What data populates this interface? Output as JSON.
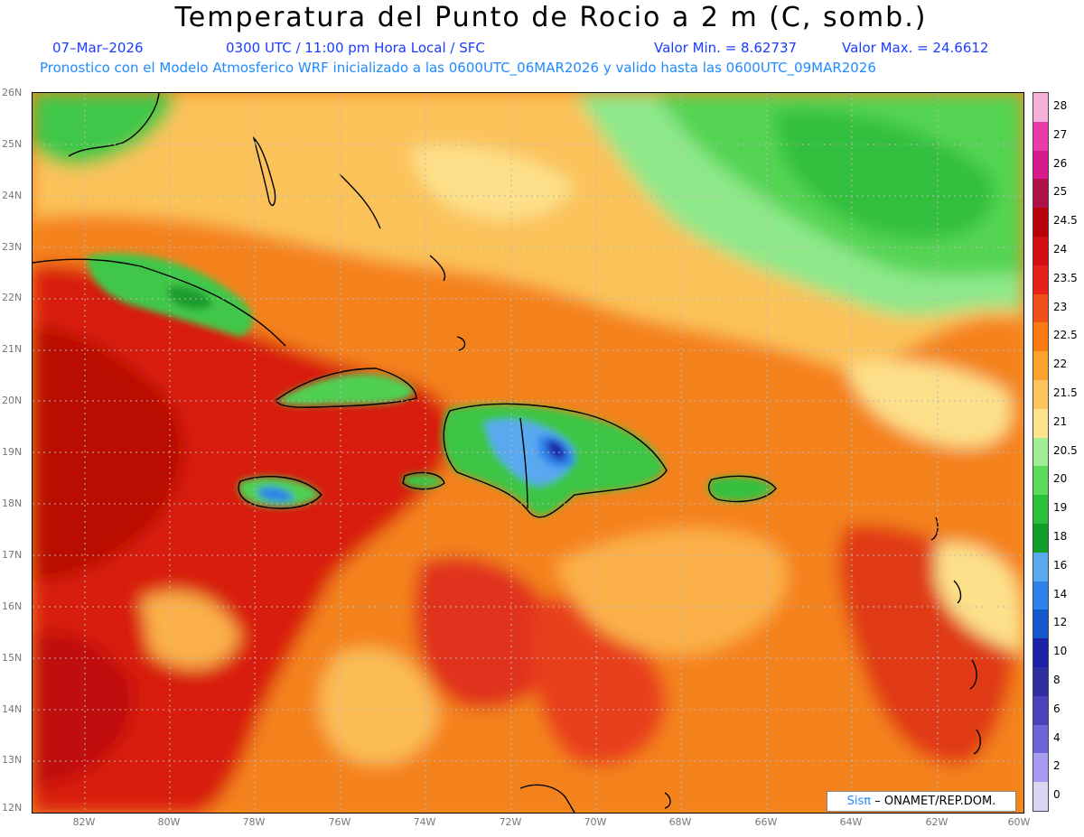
{
  "header": {
    "title": "Temperatura del Punto de Rocio a 2 m (C, somb.)",
    "date": "07–Mar–2026",
    "time": "0300 UTC / 11:00 pm Hora Local / SFC",
    "min_label": "Valor Min. = 8.62737",
    "max_label": "Valor Max. = 24.6612",
    "model_info": "Pronostico con el Modelo Atmosferico WRF inicializado a las 0600UTC_06MAR2026 y valido hasta las  0600UTC_09MAR2026"
  },
  "map": {
    "lat_labels": [
      "26N",
      "25N",
      "24N",
      "23N",
      "22N",
      "21N",
      "20N",
      "19N",
      "18N",
      "17N",
      "16N",
      "15N",
      "14N",
      "13N",
      "12N"
    ],
    "lon_labels": [
      "82W",
      "80W",
      "78W",
      "76W",
      "74W",
      "72W",
      "70W",
      "68W",
      "66W",
      "64W",
      "62W",
      "60W"
    ],
    "lat_range": [
      12,
      26
    ],
    "lon_range": [
      -83.2,
      -60
    ],
    "grid": true
  },
  "colorbar": {
    "labels": [
      "28",
      "27",
      "26",
      "25",
      "24.5",
      "24",
      "23.5",
      "23",
      "22.5",
      "22",
      "21.5",
      "21",
      "20.5",
      "20",
      "19",
      "18",
      "16",
      "14",
      "12",
      "10",
      "8",
      "6",
      "4",
      "2",
      "0"
    ],
    "colors": [
      "#f4b0d6",
      "#ea3ca8",
      "#d81b8c",
      "#b01048",
      "#b8000a",
      "#d40d10",
      "#e8201a",
      "#f0501a",
      "#fa7a14",
      "#fba232",
      "#fbc45c",
      "#fde38a",
      "#9eef95",
      "#5fdb5a",
      "#28c03c",
      "#0f9e2a",
      "#5aa8f0",
      "#2f82ea",
      "#1457cc",
      "#1a22a8",
      "#2e2ea0",
      "#4a43be",
      "#6e66d8",
      "#a69cf0",
      "#d8d8f4"
    ]
  },
  "credit": {
    "brand": "Sisπ",
    "text": "– ONAMET/REP.DOM."
  }
}
